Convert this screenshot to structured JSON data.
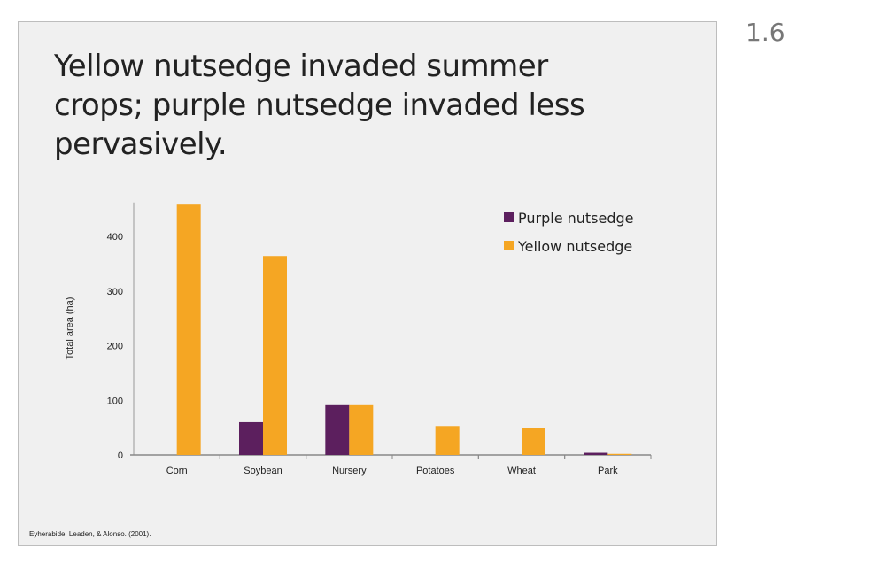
{
  "page_number": "1.6",
  "citation": "Eyherabide, Leaden, & Alonso. (2001).",
  "chart_data": {
    "type": "bar",
    "title": "Yellow nutsedge invaded summer crops; purple nutsedge invaded less pervasively.",
    "xlabel": "",
    "ylabel": "Total area (ha)",
    "categories": [
      "Corn",
      "Soybean",
      "Nursery",
      "Potatoes",
      "Wheat",
      "Park"
    ],
    "series": [
      {
        "name": "Purple nutsedge",
        "color": "#5c1f5e",
        "values": [
          0,
          60,
          91,
          0,
          0,
          4
        ]
      },
      {
        "name": "Yellow nutsedge",
        "color": "#f5a623",
        "values": [
          458,
          364,
          91,
          53,
          50,
          2
        ]
      }
    ],
    "yticks": [
      0,
      100,
      200,
      300,
      400
    ],
    "ylim": [
      0,
      462
    ],
    "grid": false,
    "legend": "top-right"
  }
}
